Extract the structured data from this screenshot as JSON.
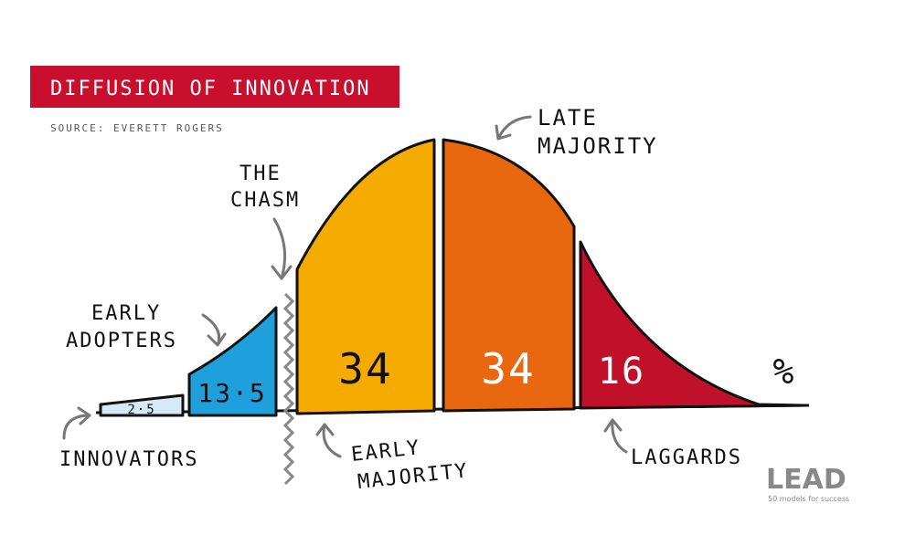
{
  "header": {
    "title": "DIFFUSION OF INNOVATION",
    "source": "SOURCE: EVERETT ROGERS"
  },
  "segments": [
    {
      "name": "INNOVATORS",
      "value": "2·5"
    },
    {
      "name": "EARLY ADOPTERS",
      "value": "13·5"
    },
    {
      "name": "EARLY MAJORITY",
      "value": "34"
    },
    {
      "name": "LATE MAJORITY",
      "value": "34"
    },
    {
      "name": "LAGGARDS",
      "value": "16"
    }
  ],
  "chasm": [
    "THE",
    "CHASM"
  ],
  "labels": {
    "innovators": [
      "INNOVATORS"
    ],
    "early_adopters": [
      "EARLY",
      "ADOPTERS"
    ],
    "early_majority": [
      "EARLY",
      "MAJORITY"
    ],
    "late_majority": [
      "LATE",
      "MAJORITY"
    ],
    "laggards": [
      "LAGGARDS"
    ]
  },
  "unit": "%",
  "logo": {
    "name": "LEAD",
    "tagline": "50 models for success"
  }
}
